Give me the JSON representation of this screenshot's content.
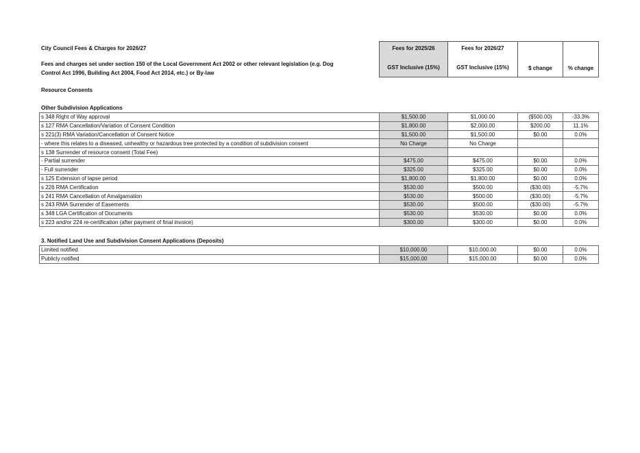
{
  "title": "City Council Fees & Charges for 2026/27",
  "subtitle_line1": "Fees and charges set under section 150 of the Local Government Act 2002 or other relevant legislation (e.g. Dog",
  "subtitle_line2": "Control Act 1996, Building Act 2004, Food Act 2014, etc.) or By-law",
  "header": {
    "col1_top": "Fees for 2025/26",
    "col1_bottom": "GST Inclusive (15%)",
    "col2_top": "Fees for 2026/27",
    "col2_bottom": "GST Inclusive (15%)",
    "col3": "$ change",
    "col4": "% change"
  },
  "section": "Resource Consents",
  "table1": {
    "heading": "Other Subdivision Applications",
    "rows": [
      [
        "s 348 Right of Way approval",
        "$1,500.00",
        "$1,000.00",
        "($500.00)",
        "-33.3%"
      ],
      [
        "s 127 RMA Cancellation/Variation of Consent Condition",
        "$1,800.00",
        "$2,000.00",
        "$200.00",
        "11.1%"
      ],
      [
        "s 221(3) RMA Variation/Cancellation of Consent Notice",
        "$1,500.00",
        "$1,500.00",
        "$0.00",
        "0.0%"
      ],
      [
        "- where this relates to a diseased, unhealthy or hazardous tree protected by a condition of subdivision consent",
        "No Charge",
        "No Charge",
        "",
        ""
      ],
      [
        "s 138 Surrender of resource consent (Total Fee)",
        "",
        "",
        "",
        ""
      ],
      [
        "- Partial surrender",
        "$475.00",
        "$475.00",
        "$0.00",
        "0.0%"
      ],
      [
        "- Full surrender",
        "$325.00",
        "$325.00",
        "$0.00",
        "0.0%"
      ],
      [
        "s 125 Extension of lapse period",
        "$1,800.00",
        "$1,800.00",
        "$0.00",
        "0.0%"
      ],
      [
        "s 226 RMA Certification",
        "$530.00",
        "$500.00",
        "($30.00)",
        "-5.7%"
      ],
      [
        "s 241 RMA Cancellation of Amalgamation",
        "$530.00",
        "$500.00",
        "($30.00)",
        "-5.7%"
      ],
      [
        "s 243 RMA Surrender of Easements",
        "$530.00",
        "$500.00",
        "($30.00)",
        "-5.7%"
      ],
      [
        "s 348 LGA Certification of Documents",
        "$530.00",
        "$530.00",
        "$0.00",
        "0.0%"
      ],
      [
        "s 223 and/or 224 re-certification (after payment of final invoice)",
        "$300.00",
        "$300.00",
        "$0.00",
        "0.0%"
      ]
    ]
  },
  "table2": {
    "heading": "3. Notified Land Use and Subdivision Consent Applications (Deposits)",
    "rows": [
      [
        "Limited notified",
        "$10,000.00",
        "$10,000.00",
        "$0.00",
        "0.0%"
      ],
      [
        "Publicly notified",
        "$15,000.00",
        "$15,000.00",
        "$0.00",
        "0.0%"
      ]
    ]
  }
}
